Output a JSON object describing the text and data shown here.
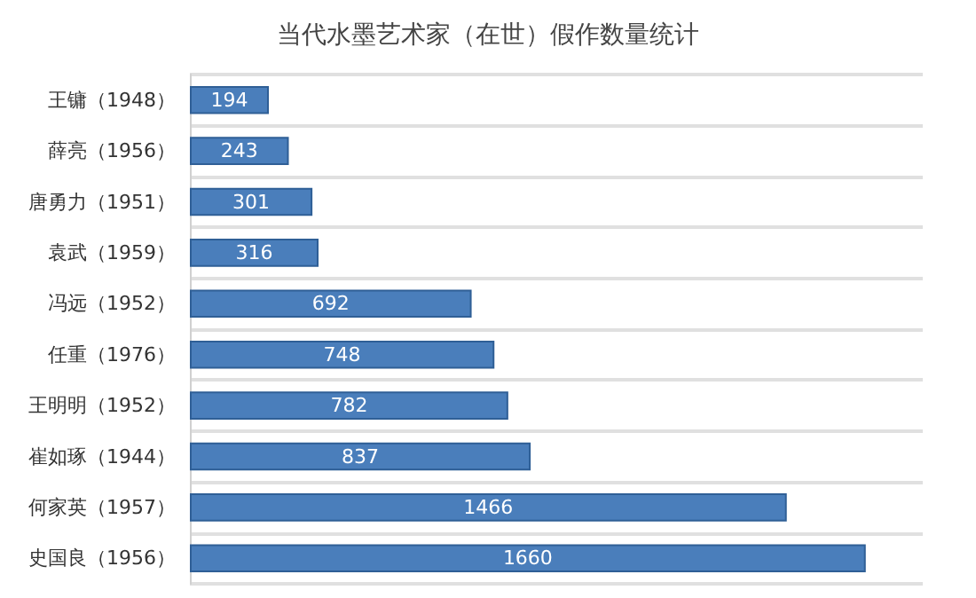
{
  "chart_data": {
    "type": "bar",
    "orientation": "horizontal",
    "title": "当代水墨艺术家（在世）假作数量统计",
    "categories": [
      "王镛（1948）",
      "薛亮（1956）",
      "唐勇力（1951）",
      "袁武（1959）",
      "冯远（1952）",
      "任重（1976）",
      "王明明（1952）",
      "崔如琢（1944）",
      "何家英（1957）",
      "史国良（1956）"
    ],
    "values": [
      194,
      243,
      301,
      316,
      692,
      748,
      782,
      837,
      1466,
      1660
    ],
    "color": "#4a7ebb",
    "data_labels": true,
    "grid": "y"
  }
}
